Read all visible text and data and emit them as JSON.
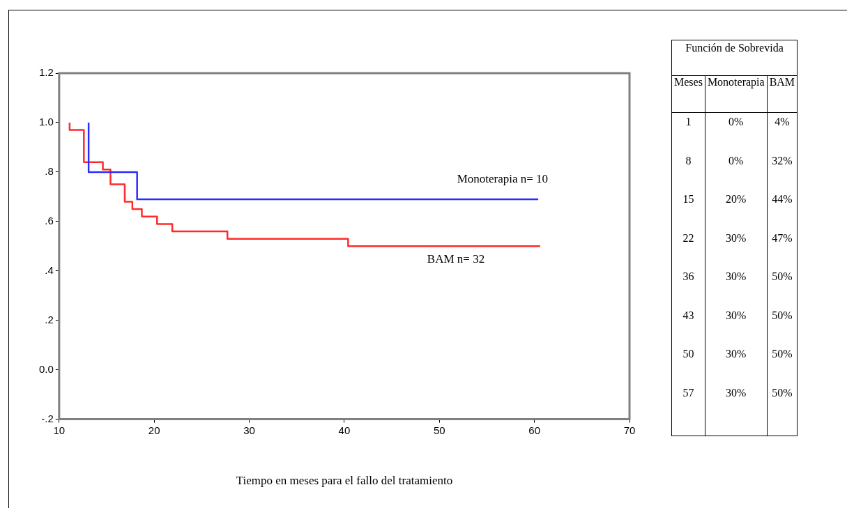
{
  "chart_data": [
    {
      "type": "step",
      "xlabel": "Tiempo en meses para el fallo del tratamiento",
      "xlim": [
        10,
        70
      ],
      "xticks": [
        10,
        20,
        30,
        40,
        50,
        60,
        70
      ],
      "ylim": [
        -0.2,
        1.2
      ],
      "yticks": [
        {
          "value": -0.2,
          "label": "-.2"
        },
        {
          "value": 0,
          "label": "0.0"
        },
        {
          "value": 0.2,
          "label": ".2"
        },
        {
          "value": 0.4,
          "label": ".4"
        },
        {
          "value": 0.6,
          "label": ".6"
        },
        {
          "value": 0.8,
          "label": ".8"
        },
        {
          "value": 1.0,
          "label": "1.0"
        },
        {
          "value": 1.2,
          "label": "1.2"
        }
      ],
      "series": [
        {
          "name": "Monoterapia n= 10",
          "color": "#2b2bff",
          "x": [
            13.1,
            13.1,
            18.2,
            60.4
          ],
          "values": [
            1.0,
            0.8,
            0.69,
            0.69
          ]
        },
        {
          "name": "BAM n= 32",
          "color": "#ff2b2b",
          "x": [
            11.1,
            11.1,
            12.6,
            14.6,
            15.4,
            16.9,
            17.7,
            18.7,
            20.3,
            21.9,
            27.7,
            40.4,
            60.6
          ],
          "values": [
            1.0,
            0.97,
            0.84,
            0.81,
            0.75,
            0.68,
            0.65,
            0.62,
            0.59,
            0.56,
            0.53,
            0.5,
            0.5
          ]
        }
      ]
    },
    {
      "type": "other",
      "title": "Función de Sobrevida",
      "xlabel": "Meses",
      "categories": [
        "1",
        "8",
        "15",
        "22",
        "36",
        "43",
        "50",
        "57"
      ],
      "series": [
        {
          "name": "Monoterapia",
          "values": [
            0,
            0,
            20,
            30,
            30,
            30,
            30,
            30
          ],
          "value_labels": [
            "0%",
            "0%",
            "20%",
            "30%",
            "30%",
            "30%",
            "30%",
            "30%"
          ]
        },
        {
          "name": "BAM",
          "values": [
            4,
            32,
            44,
            47,
            50,
            50,
            50,
            50
          ],
          "value_labels": [
            "4%",
            "32%",
            "44%",
            "47%",
            "50%",
            "50%",
            "50%",
            "50%"
          ]
        }
      ]
    }
  ]
}
